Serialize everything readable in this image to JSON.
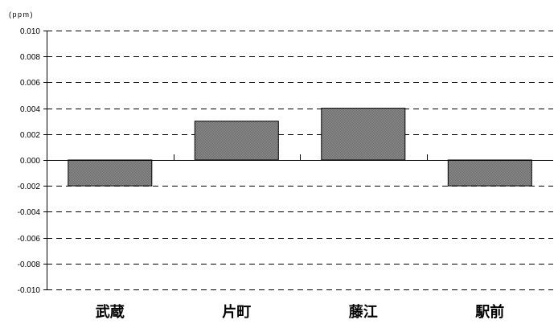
{
  "chart_data": {
    "type": "bar",
    "unit_label": "(ppm)",
    "categories": [
      "武蔵",
      "片町",
      "藤江",
      "駅前"
    ],
    "values": [
      -0.002,
      0.003,
      0.004,
      -0.002
    ],
    "ylim": [
      -0.01,
      0.01
    ],
    "y_ticks": [
      "0.010",
      "0.008",
      "0.006",
      "0.004",
      "0.002",
      "0.000",
      "-0.002",
      "-0.004",
      "-0.006",
      "-0.008",
      "-0.010"
    ],
    "grid": true,
    "grid_style": "dashed",
    "bar_color": "#808080",
    "bar_border": "#000000"
  }
}
